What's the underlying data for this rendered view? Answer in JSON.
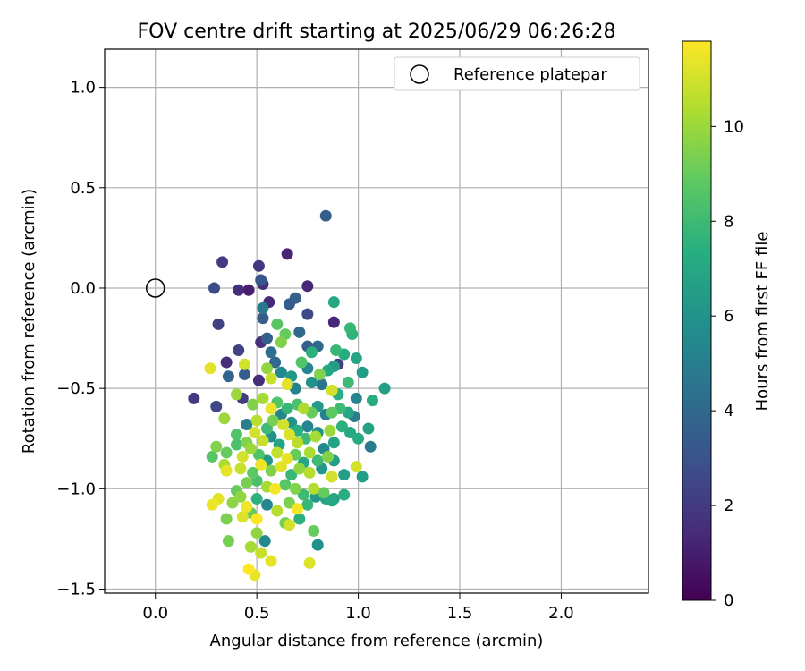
{
  "chart_data": {
    "type": "scatter",
    "title": "FOV centre drift starting at 2025/06/29 06:26:28",
    "xlabel": "Angular distance from reference (arcmin)",
    "ylabel": "Rotation from reference (arcmin)",
    "xlim": [
      -0.25,
      2.43
    ],
    "ylim": [
      -1.52,
      1.19
    ],
    "xticks": [
      0.0,
      0.5,
      1.0,
      1.5,
      2.0
    ],
    "yticks": [
      -1.5,
      -1.0,
      -0.5,
      0.0,
      0.5,
      1.0
    ],
    "xtick_labels": [
      "0.0",
      "0.5",
      "1.0",
      "1.5",
      "2.0"
    ],
    "ytick_labels": [
      "−1.5",
      "−1.0",
      "−0.5",
      "0.0",
      "0.5",
      "1.0"
    ],
    "grid": true,
    "legend": {
      "label": "Reference platepar",
      "placement": "top-right"
    },
    "reference_point": {
      "x": 0.0,
      "y": 0.0
    },
    "colorbar": {
      "label": "Hours from first FF file",
      "colormap": "viridis",
      "range": [
        0,
        11.8
      ],
      "ticks": [
        0,
        2,
        4,
        6,
        8,
        10
      ],
      "tick_labels": [
        "0",
        "2",
        "4",
        "6",
        "8",
        "10"
      ]
    },
    "series": [
      {
        "points": [
          [
            0.65,
            0.17,
            1.2
          ],
          [
            0.75,
            0.01,
            1.3
          ],
          [
            0.84,
            0.36,
            3.5
          ],
          [
            0.33,
            0.13,
            2.0
          ],
          [
            0.29,
            0.0,
            2.7
          ],
          [
            0.51,
            0.11,
            1.8
          ],
          [
            0.41,
            -0.01,
            1.5
          ],
          [
            0.53,
            0.02,
            1.6
          ],
          [
            0.46,
            -0.01,
            1.0
          ],
          [
            0.52,
            0.04,
            3.2
          ],
          [
            0.56,
            -0.07,
            1.4
          ],
          [
            0.69,
            -0.05,
            3.6
          ],
          [
            0.66,
            -0.08,
            3.4
          ],
          [
            0.75,
            -0.13,
            2.6
          ],
          [
            0.31,
            -0.18,
            2.3
          ],
          [
            0.53,
            -0.15,
            3.4
          ],
          [
            0.53,
            -0.1,
            4.7
          ],
          [
            0.88,
            -0.17,
            1.3
          ],
          [
            0.88,
            -0.07,
            7.0
          ],
          [
            0.96,
            -0.2,
            7.8
          ],
          [
            0.97,
            -0.23,
            7.6
          ],
          [
            0.52,
            -0.27,
            1.6
          ],
          [
            0.41,
            -0.31,
            2.3
          ],
          [
            0.55,
            -0.25,
            3.6
          ],
          [
            0.57,
            -0.32,
            4.3
          ],
          [
            0.62,
            -0.27,
            9.5
          ],
          [
            0.64,
            -0.23,
            9.0
          ],
          [
            0.6,
            -0.18,
            8.7
          ],
          [
            0.71,
            -0.22,
            4.0
          ],
          [
            0.75,
            -0.29,
            3.5
          ],
          [
            0.8,
            -0.29,
            4.0
          ],
          [
            0.77,
            -0.32,
            7.5
          ],
          [
            0.89,
            -0.31,
            7.8
          ],
          [
            0.93,
            -0.33,
            7.2
          ],
          [
            0.99,
            -0.35,
            6.8
          ],
          [
            0.9,
            -0.38,
            2.3
          ],
          [
            0.35,
            -0.37,
            1.5
          ],
          [
            0.27,
            -0.4,
            11.3
          ],
          [
            0.44,
            -0.38,
            11.0
          ],
          [
            0.55,
            -0.4,
            9.8
          ],
          [
            0.59,
            -0.37,
            4.0
          ],
          [
            0.62,
            -0.42,
            5.5
          ],
          [
            0.67,
            -0.44,
            6.2
          ],
          [
            0.72,
            -0.37,
            8.5
          ],
          [
            0.75,
            -0.4,
            5.3
          ],
          [
            0.81,
            -0.43,
            9.5
          ],
          [
            0.85,
            -0.41,
            7.0
          ],
          [
            0.88,
            -0.39,
            6.5
          ],
          [
            0.95,
            -0.47,
            8.0
          ],
          [
            1.02,
            -0.42,
            6.5
          ],
          [
            0.44,
            -0.43,
            3.5
          ],
          [
            0.36,
            -0.44,
            3.8
          ],
          [
            0.51,
            -0.46,
            1.5
          ],
          [
            0.57,
            -0.45,
            10.8
          ],
          [
            0.65,
            -0.48,
            11.3
          ],
          [
            0.69,
            -0.5,
            5.2
          ],
          [
            0.77,
            -0.47,
            6.0
          ],
          [
            0.82,
            -0.48,
            4.5
          ],
          [
            0.87,
            -0.51,
            11.0
          ],
          [
            0.9,
            -0.53,
            7.3
          ],
          [
            0.99,
            -0.55,
            5.3
          ],
          [
            1.07,
            -0.56,
            7.2
          ],
          [
            1.13,
            -0.5,
            6.6
          ],
          [
            0.19,
            -0.55,
            2.0
          ],
          [
            0.3,
            -0.59,
            2.5
          ],
          [
            0.4,
            -0.53,
            10.0
          ],
          [
            0.43,
            -0.55,
            2.1
          ],
          [
            0.48,
            -0.58,
            9.5
          ],
          [
            0.53,
            -0.55,
            10.2
          ],
          [
            0.57,
            -0.6,
            11.5
          ],
          [
            0.6,
            -0.57,
            8.5
          ],
          [
            0.62,
            -0.63,
            5.3
          ],
          [
            0.65,
            -0.6,
            7.8
          ],
          [
            0.7,
            -0.58,
            8.3
          ],
          [
            0.73,
            -0.6,
            10.3
          ],
          [
            0.77,
            -0.62,
            9.0
          ],
          [
            0.8,
            -0.59,
            6.3
          ],
          [
            0.84,
            -0.63,
            5.1
          ],
          [
            0.87,
            -0.62,
            8.8
          ],
          [
            0.91,
            -0.6,
            8.0
          ],
          [
            0.95,
            -0.62,
            7.0
          ],
          [
            0.98,
            -0.64,
            5.0
          ],
          [
            1.05,
            -0.7,
            6.7
          ],
          [
            0.34,
            -0.65,
            10.0
          ],
          [
            0.45,
            -0.68,
            5.0
          ],
          [
            0.5,
            -0.66,
            10.5
          ],
          [
            0.55,
            -0.7,
            8.0
          ],
          [
            0.58,
            -0.66,
            9.3
          ],
          [
            0.63,
            -0.68,
            11.0
          ],
          [
            0.67,
            -0.67,
            6.0
          ],
          [
            0.7,
            -0.71,
            7.4
          ],
          [
            0.75,
            -0.69,
            5.3
          ],
          [
            0.8,
            -0.72,
            6.0
          ],
          [
            0.86,
            -0.71,
            10.0
          ],
          [
            0.92,
            -0.69,
            7.5
          ],
          [
            0.96,
            -0.72,
            7.0
          ],
          [
            1.0,
            -0.75,
            7.2
          ],
          [
            1.06,
            -0.79,
            4.8
          ],
          [
            0.4,
            -0.73,
            8.5
          ],
          [
            0.45,
            -0.77,
            9.5
          ],
          [
            0.49,
            -0.72,
            11.0
          ],
          [
            0.53,
            -0.76,
            10.8
          ],
          [
            0.57,
            -0.74,
            5.8
          ],
          [
            0.61,
            -0.78,
            6.9
          ],
          [
            0.66,
            -0.73,
            11.2
          ],
          [
            0.7,
            -0.77,
            10.6
          ],
          [
            0.74,
            -0.75,
            8.0
          ],
          [
            0.79,
            -0.74,
            10.2
          ],
          [
            0.83,
            -0.8,
            5.5
          ],
          [
            0.88,
            -0.77,
            6.8
          ],
          [
            0.3,
            -0.79,
            9.5
          ],
          [
            0.35,
            -0.82,
            9.0
          ],
          [
            0.4,
            -0.78,
            8.3
          ],
          [
            0.43,
            -0.84,
            11.0
          ],
          [
            0.47,
            -0.8,
            10.0
          ],
          [
            0.51,
            -0.83,
            8.5
          ],
          [
            0.55,
            -0.86,
            6.3
          ],
          [
            0.6,
            -0.82,
            10.7
          ],
          [
            0.65,
            -0.85,
            11.4
          ],
          [
            0.69,
            -0.83,
            9.0
          ],
          [
            0.73,
            -0.87,
            7.0
          ],
          [
            0.76,
            -0.82,
            10.3
          ],
          [
            0.8,
            -0.86,
            8.0
          ],
          [
            0.85,
            -0.84,
            9.5
          ],
          [
            0.88,
            -0.86,
            6.5
          ],
          [
            0.28,
            -0.84,
            8.7
          ],
          [
            0.34,
            -0.88,
            10.3
          ],
          [
            0.42,
            -0.9,
            10.8
          ],
          [
            0.48,
            -0.92,
            8.8
          ],
          [
            0.52,
            -0.88,
            11.5
          ],
          [
            0.57,
            -0.91,
            9.5
          ],
          [
            0.62,
            -0.89,
            11.3
          ],
          [
            0.67,
            -0.93,
            7.8
          ],
          [
            0.71,
            -0.9,
            9.8
          ],
          [
            0.76,
            -0.92,
            10.5
          ],
          [
            0.82,
            -0.9,
            6.2
          ],
          [
            0.87,
            -0.94,
            11.0
          ],
          [
            0.93,
            -0.93,
            6.6
          ],
          [
            0.99,
            -0.89,
            11.0
          ],
          [
            1.02,
            -0.94,
            6.5
          ],
          [
            0.35,
            -0.91,
            11.4
          ],
          [
            0.45,
            -0.97,
            9.3
          ],
          [
            0.5,
            -0.96,
            8.3
          ],
          [
            0.55,
            -0.99,
            10.2
          ],
          [
            0.59,
            -1.0,
            11.6
          ],
          [
            0.64,
            -0.98,
            8.7
          ],
          [
            0.69,
            -1.0,
            9.5
          ],
          [
            0.73,
            -1.03,
            8.0
          ],
          [
            0.78,
            -1.0,
            10.4
          ],
          [
            0.83,
            -1.02,
            9.0
          ],
          [
            0.88,
            -1.05,
            6.8
          ],
          [
            0.93,
            -1.03,
            7.3
          ],
          [
            0.4,
            -1.01,
            9.0
          ],
          [
            0.42,
            -1.04,
            9.8
          ],
          [
            0.31,
            -1.05,
            11.3
          ],
          [
            0.38,
            -1.07,
            9.7
          ],
          [
            0.45,
            -1.09,
            11.5
          ],
          [
            0.5,
            -1.05,
            7.5
          ],
          [
            0.55,
            -1.08,
            5.4
          ],
          [
            0.6,
            -1.11,
            10.5
          ],
          [
            0.66,
            -1.07,
            9.4
          ],
          [
            0.7,
            -1.1,
            11.6
          ],
          [
            0.75,
            -1.08,
            7.8
          ],
          [
            0.79,
            -1.04,
            6.2
          ],
          [
            0.84,
            -1.05,
            6.8
          ],
          [
            0.87,
            -1.06,
            7.0
          ],
          [
            0.28,
            -1.08,
            11.5
          ],
          [
            0.35,
            -1.15,
            9.4
          ],
          [
            0.43,
            -1.14,
            11.2
          ],
          [
            0.47,
            -1.12,
            9.0
          ],
          [
            0.5,
            -1.15,
            11.8
          ],
          [
            0.64,
            -1.17,
            9.3
          ],
          [
            0.66,
            -1.18,
            11.0
          ],
          [
            0.71,
            -1.15,
            7.5
          ],
          [
            0.36,
            -1.26,
            9.3
          ],
          [
            0.5,
            -1.22,
            9.8
          ],
          [
            0.54,
            -1.26,
            5.5
          ],
          [
            0.47,
            -1.29,
            10.2
          ],
          [
            0.52,
            -1.32,
            10.8
          ],
          [
            0.57,
            -1.36,
            11.4
          ],
          [
            0.78,
            -1.21,
            9.0
          ],
          [
            0.8,
            -1.28,
            6.0
          ],
          [
            0.76,
            -1.37,
            11.2
          ],
          [
            0.46,
            -1.4,
            11.8
          ],
          [
            0.49,
            -1.43,
            11.4
          ]
        ]
      }
    ]
  }
}
